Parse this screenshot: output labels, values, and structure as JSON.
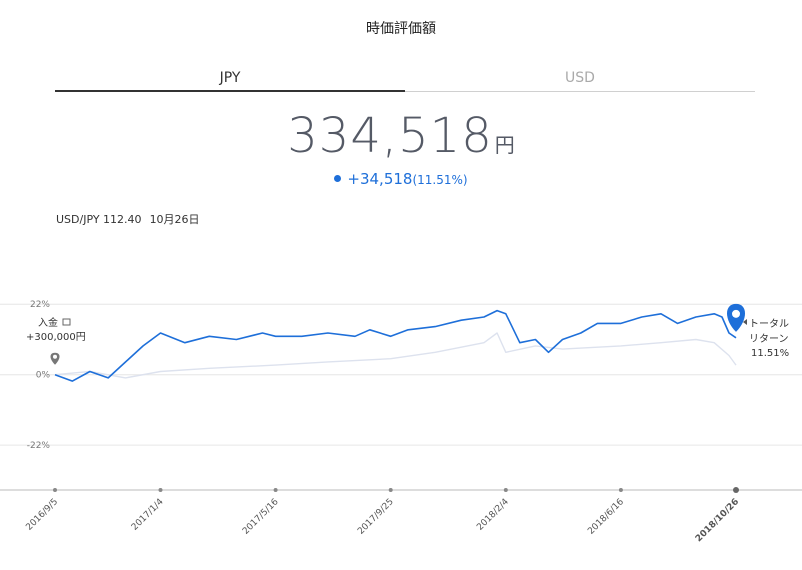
{
  "header": {
    "title": "時価評価額"
  },
  "tabs": [
    {
      "label": "JPY",
      "active": true
    },
    {
      "label": "USD",
      "active": false
    }
  ],
  "valuation": {
    "amount": "334,518",
    "unit": "円",
    "change": "+34,518",
    "change_pct": "(11.51%)"
  },
  "fx": {
    "pair_rate": "USD/JPY 112.40",
    "date": "10月26日"
  },
  "colors": {
    "primary": "#1e6fd9",
    "benchmark": "#dde2ee",
    "grid": "#e6e6e6"
  },
  "chart_data": {
    "type": "line",
    "y_tick_labels": [
      "22%",
      "0%",
      "-22%"
    ],
    "y_ticks": [
      22,
      0,
      -22
    ],
    "ylim": [
      -36,
      28
    ],
    "x_range": [
      "2016/9/5",
      "2018/10/26"
    ],
    "x_tick_labels": [
      "2016/9/5",
      "2017/1/4",
      "2017/5/16",
      "2017/9/25",
      "2018/2/4",
      "2018/6/16",
      "2018/10/26"
    ],
    "grid": true,
    "series": [
      {
        "role": "portfolio",
        "color": "#1e6fd9",
        "x": [
          "2016/9/5",
          "2016/9/25",
          "2016/10/15",
          "2016/11/5",
          "2016/11/25",
          "2016/12/15",
          "2017/1/4",
          "2017/2/1",
          "2017/3/1",
          "2017/4/1",
          "2017/5/1",
          "2017/5/16",
          "2017/6/15",
          "2017/7/15",
          "2017/8/15",
          "2017/9/1",
          "2017/9/25",
          "2017/10/15",
          "2017/11/15",
          "2017/12/15",
          "2018/1/10",
          "2018/1/25",
          "2018/2/4",
          "2018/2/20",
          "2018/3/10",
          "2018/3/25",
          "2018/4/10",
          "2018/5/1",
          "2018/5/20",
          "2018/6/16",
          "2018/7/10",
          "2018/8/1",
          "2018/8/20",
          "2018/9/10",
          "2018/10/1",
          "2018/10/10",
          "2018/10/18",
          "2018/10/26"
        ],
        "y": [
          0,
          -2,
          1,
          -1,
          4,
          9,
          13,
          10,
          12,
          11,
          13,
          12,
          12,
          13,
          12,
          14,
          12,
          14,
          15,
          17,
          18,
          20,
          19,
          10,
          11,
          7,
          11,
          13,
          16,
          16,
          18,
          19,
          16,
          18,
          19,
          18,
          13,
          11.51
        ]
      },
      {
        "role": "benchmark",
        "color": "#dde2ee",
        "x": [
          "2016/9/5",
          "2016/10/15",
          "2016/11/25",
          "2017/1/4",
          "2017/3/1",
          "2017/5/16",
          "2017/7/15",
          "2017/9/25",
          "2017/11/15",
          "2018/1/10",
          "2018/1/25",
          "2018/2/4",
          "2018/3/10",
          "2018/4/10",
          "2018/6/16",
          "2018/8/1",
          "2018/9/10",
          "2018/10/1",
          "2018/10/18",
          "2018/10/26"
        ],
        "y": [
          0,
          1,
          -1,
          1,
          2,
          3,
          4,
          5,
          7,
          10,
          13,
          7,
          9,
          8,
          9,
          10,
          11,
          10,
          6,
          3
        ]
      }
    ],
    "annotations": {
      "deposit": {
        "label": "入金",
        "amount": "+300,000円",
        "x": "2016/9/5"
      },
      "total_return": {
        "label_line1": "トータル",
        "label_line2": "リターン",
        "value": "11.51%",
        "x": "2018/10/26"
      }
    }
  }
}
